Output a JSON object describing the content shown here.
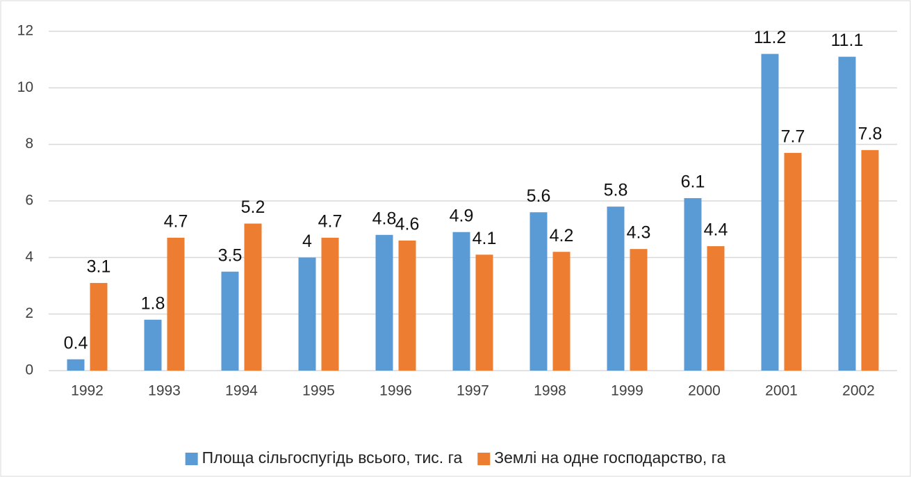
{
  "chart_data": {
    "type": "bar",
    "categories": [
      "1992",
      "1993",
      "1994",
      "1995",
      "1996",
      "1997",
      "1998",
      "1999",
      "2000",
      "2001",
      "2002"
    ],
    "series": [
      {
        "name": "Площа сільгоспугідь всього, тис. га",
        "color": "#5b9bd5",
        "values": [
          0.4,
          1.8,
          3.5,
          4,
          4.8,
          4.9,
          5.6,
          5.8,
          6.1,
          11.2,
          11.1
        ]
      },
      {
        "name": "Землі на одне господарство, га",
        "color": "#ed7d31",
        "values": [
          3.1,
          4.7,
          5.2,
          4.7,
          4.6,
          4.1,
          4.2,
          4.3,
          4.4,
          7.7,
          7.8
        ]
      }
    ],
    "ylim": [
      0,
      12
    ],
    "yticks": [
      0,
      2,
      4,
      6,
      8,
      10,
      12
    ],
    "grid": true,
    "legend": "bottom"
  }
}
